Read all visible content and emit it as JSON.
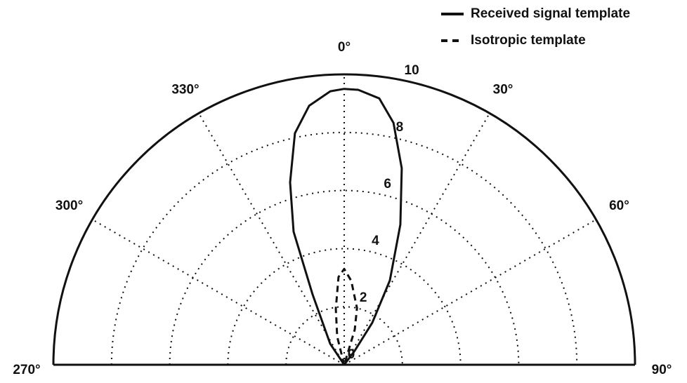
{
  "chart_data": {
    "type": "polar",
    "rlim": [
      0,
      10
    ],
    "rticks": [
      0,
      2,
      4,
      6,
      8,
      10
    ],
    "thetaticks": [
      {
        "value": 270,
        "label": "270°"
      },
      {
        "value": 300,
        "label": "300°"
      },
      {
        "value": 330,
        "label": "330°"
      },
      {
        "value": 0,
        "label": "0°"
      },
      {
        "value": 30,
        "label": "30°"
      },
      {
        "value": 60,
        "label": "60°"
      },
      {
        "value": 90,
        "label": "90°"
      }
    ],
    "grid": true,
    "legend": "top-right",
    "series": [
      {
        "name": "Received signal template",
        "color": "#111111",
        "dash": "solid",
        "theta": [
          326.3,
          326.3,
          335.8,
          339.2,
          343.5,
          348,
          352.3,
          357.1,
          0,
          2.9,
          7.5,
          11.5,
          16.3,
          21.8,
          28.4,
          33.7,
          36.9,
          40
        ],
        "r": [
          0,
          0.87,
          2.65,
          4.9,
          6.55,
          8.15,
          9.0,
          9.43,
          9.5,
          9.48,
          9.25,
          8.5,
          7.05,
          5.2,
          3.3,
          1.74,
          0.6,
          0
        ]
      },
      {
        "name": "Isotropic template",
        "color": "#111111",
        "dash": "dashed",
        "theta": [
          334,
          346,
          351.5,
          356.3,
          0,
          4.8,
          12.7,
          16.7,
          20
        ],
        "r": [
          0,
          1.0,
          1.95,
          3.03,
          3.3,
          2.9,
          2.0,
          1.26,
          0
        ]
      }
    ]
  }
}
